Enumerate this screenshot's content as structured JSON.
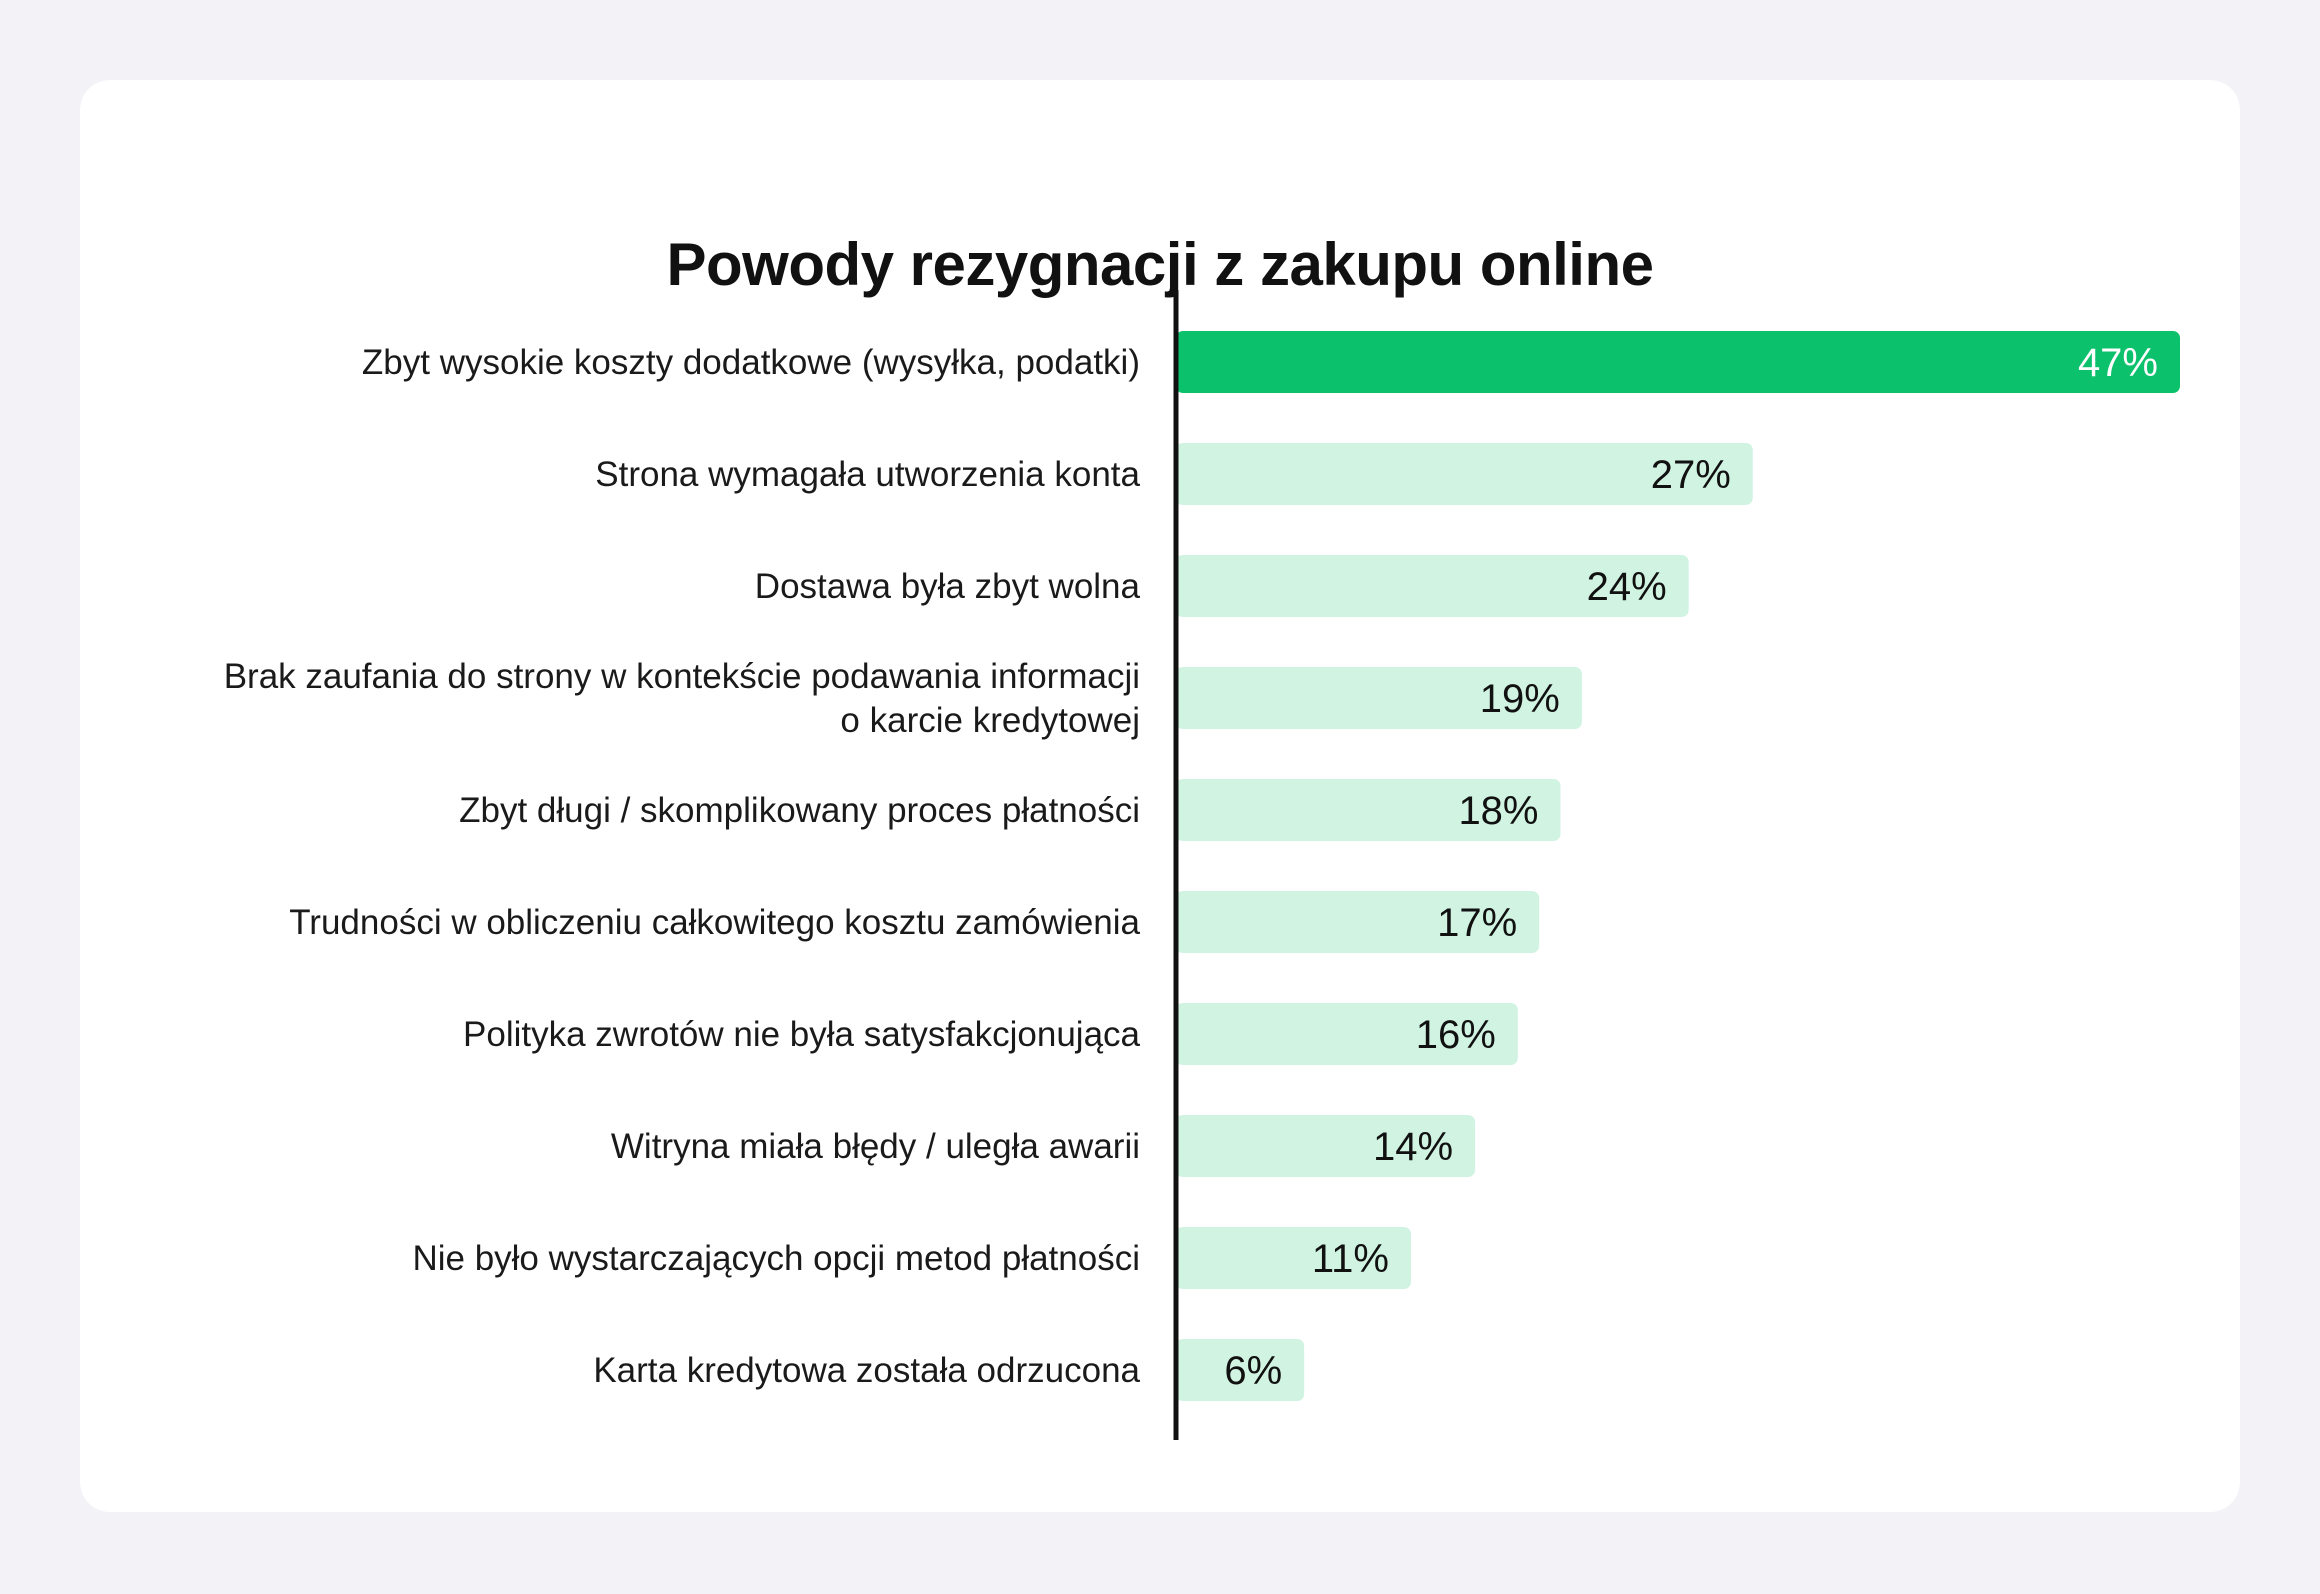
{
  "chart_data": {
    "type": "bar",
    "orientation": "horizontal",
    "title": "Powody rezygnacji z zakupu online",
    "categories": [
      [
        "Zbyt wysokie koszty dodatkowe (wysyłka, podatki)"
      ],
      [
        "Strona wymagała utworzenia konta"
      ],
      [
        "Dostawa była zbyt wolna"
      ],
      [
        "Brak zaufania do strony w kontekście podawania informacji",
        "o karcie kredytowej"
      ],
      [
        "Zbyt długi / skomplikowany proces płatności"
      ],
      [
        "Trudności w obliczeniu całkowitego kosztu zamówienia"
      ],
      [
        "Polityka zwrotów nie była satysfakcjonująca"
      ],
      [
        "Witryna miała błędy / uległa awarii"
      ],
      [
        "Nie było wystarczających opcji metod płatności"
      ],
      [
        "Karta kredytowa została odrzucona"
      ]
    ],
    "values": [
      47,
      27,
      24,
      19,
      18,
      17,
      16,
      14,
      11,
      6
    ],
    "value_labels": [
      "47%",
      "27%",
      "24%",
      "19%",
      "18%",
      "17%",
      "16%",
      "14%",
      "11%",
      "6%"
    ],
    "xlim": [
      0,
      47
    ],
    "grid": false,
    "legend": "none",
    "colors": {
      "highlight_bar": "#0bc16b",
      "bar": "#d1f3e2",
      "highlight_label": "#ffffff",
      "label": "#111111",
      "axis": "#111111",
      "card_background": "#ffffff",
      "page_background": "#f2f2f7"
    }
  }
}
